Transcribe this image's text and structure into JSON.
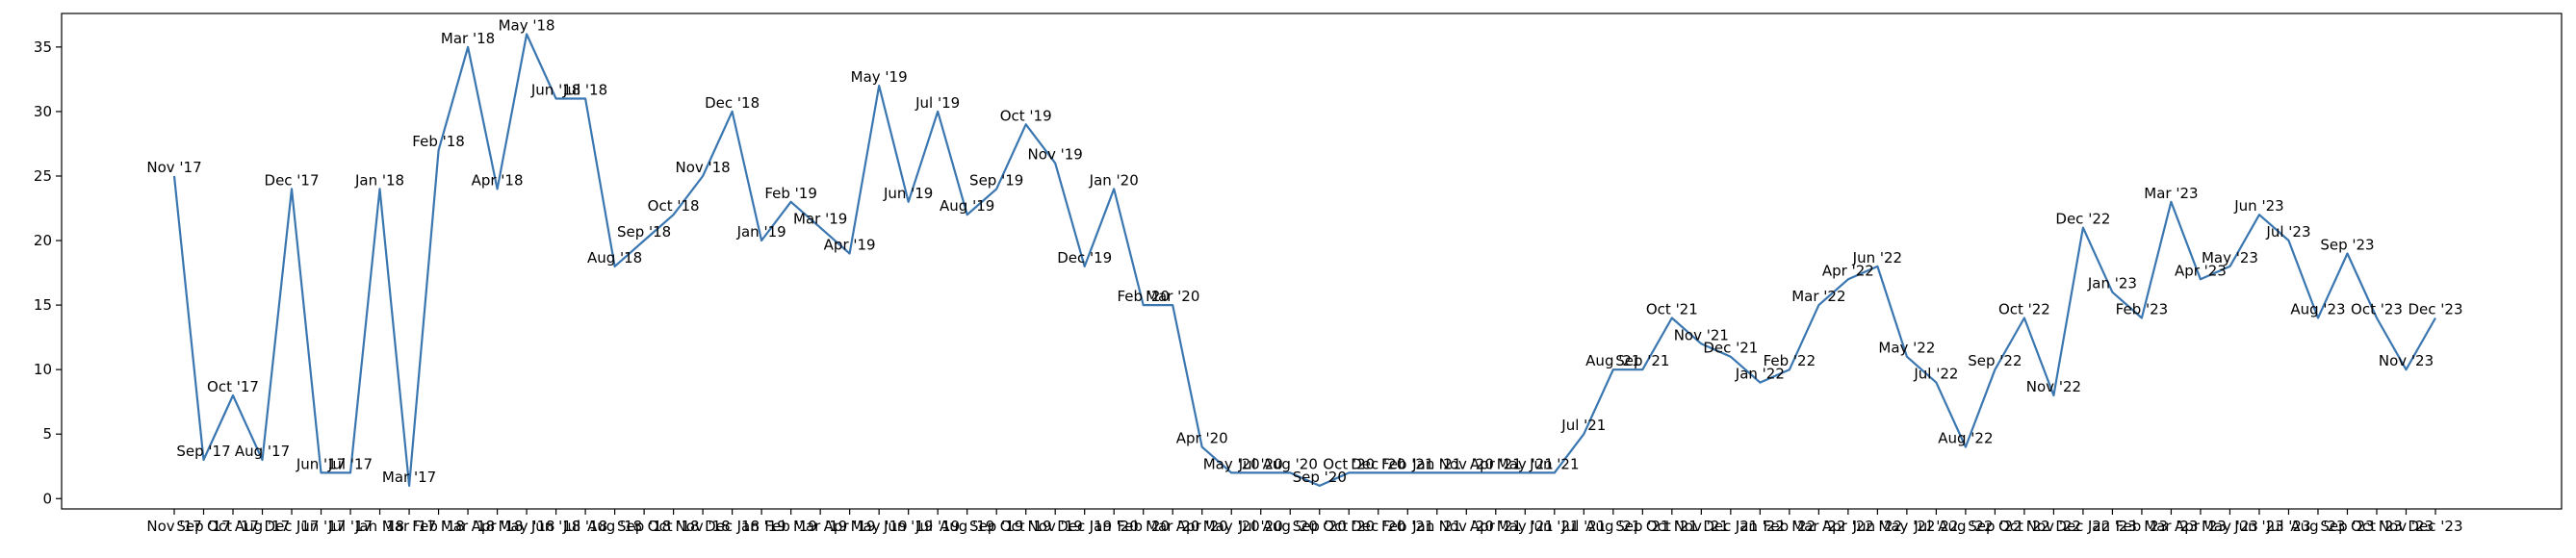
{
  "chart_data": {
    "type": "line",
    "title": "",
    "xlabel": "",
    "ylabel": "",
    "ylim": [
      -0.8,
      37.6
    ],
    "yticks": [
      0,
      5,
      10,
      15,
      20,
      25,
      30,
      35
    ],
    "grid": false,
    "legend": "none",
    "line_color": "#3a76b0",
    "categories": [
      "Nov '17",
      "Sep '17",
      "Oct '17",
      "Aug '17",
      "Dec '17",
      "Jun '17",
      "Jul '17",
      "Jan '18",
      "Mar '17",
      "Feb '18",
      "Mar '18",
      "Apr '18",
      "May '18",
      "Jun '18",
      "Jul '18",
      "Aug '18",
      "Sep '18",
      "Oct '18",
      "Nov '18",
      "Dec '18",
      "Jan '19",
      "Feb '19",
      "Mar '19",
      "Apr '19",
      "May '19",
      "Jun '19",
      "Jul '19",
      "Aug '19",
      "Sep '19",
      "Oct '19",
      "Nov '19",
      "Dec '19",
      "Jan '20",
      "Feb '20",
      "Mar '20",
      "Apr '20",
      "May '20",
      "Jul '20",
      "Aug '20",
      "Sep '20",
      "Oct '20",
      "Dec '20",
      "Feb '21",
      "Jan '21",
      "Nov '20",
      "Apr '21",
      "May '21",
      "Jun '21",
      "Jul '21",
      "Aug '21",
      "Sep '21",
      "Oct '21",
      "Nov '21",
      "Dec '21",
      "Jan '22",
      "Feb '22",
      "Mar '22",
      "Apr '22",
      "Jun '22",
      "May '22",
      "Jul '22",
      "Aug '22",
      "Sep '22",
      "Oct '22",
      "Nov '22",
      "Dec '22",
      "Jan '23",
      "Feb '23",
      "Mar '23",
      "Apr '23",
      "May '23",
      "Jun '23",
      "Jul '23",
      "Aug '23",
      "Sep '23",
      "Oct '23",
      "Nov '23",
      "Dec '23"
    ],
    "values": [
      25,
      3,
      8,
      3,
      24,
      2,
      2,
      24,
      1,
      27,
      35,
      24,
      36,
      31,
      31,
      18,
      20,
      22,
      25,
      30,
      20,
      23,
      21,
      19,
      32,
      23,
      30,
      22,
      24,
      29,
      26,
      18,
      24,
      15,
      15,
      4,
      2,
      2,
      2,
      1,
      2,
      2,
      2,
      2,
      2,
      2,
      2,
      2,
      5,
      10,
      10,
      14,
      12,
      11,
      9,
      10,
      15,
      17,
      18,
      11,
      9,
      4,
      10,
      14,
      8,
      21,
      16,
      14,
      23,
      17,
      18,
      22,
      20,
      14,
      19,
      14,
      10,
      14
    ]
  }
}
